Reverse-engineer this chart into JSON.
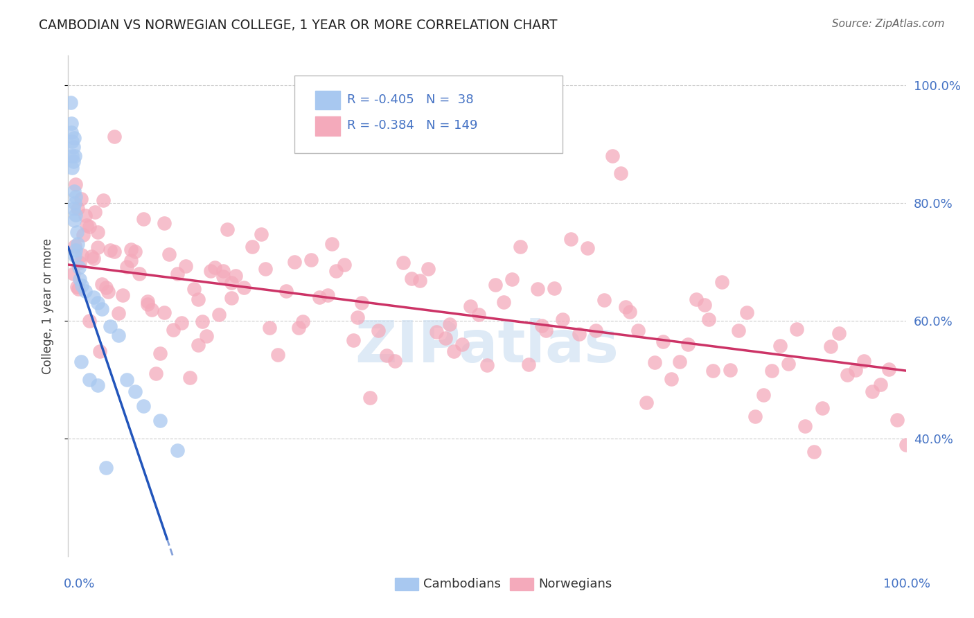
{
  "title": "CAMBODIAN VS NORWEGIAN COLLEGE, 1 YEAR OR MORE CORRELATION CHART",
  "source_text": "Source: ZipAtlas.com",
  "ylabel": "College, 1 year or more",
  "legend_blue_r": "-0.405",
  "legend_blue_n": "38",
  "legend_pink_r": "-0.384",
  "legend_pink_n": "149",
  "legend_label_cambodians": "Cambodians",
  "legend_label_norwegians": "Norwegians",
  "blue_scatter_color": "#A8C8F0",
  "pink_scatter_color": "#F4AABB",
  "blue_line_color": "#2255BB",
  "pink_line_color": "#CC3366",
  "r_n_text_color": "#4472C4",
  "axis_label_color": "#4472C4",
  "title_color": "#222222",
  "source_color": "#666666",
  "watermark_color": "#C8DCF0",
  "ylabel_color": "#444444",
  "background_color": "#FFFFFF",
  "grid_color": "#CCCCCC",
  "yticks": [
    0.4,
    0.6,
    0.8,
    1.0
  ],
  "ytick_labels": [
    "40.0%",
    "60.0%",
    "80.0%",
    "100.0%"
  ],
  "xlim": [
    0.0,
    1.0
  ],
  "ylim": [
    0.2,
    1.05
  ]
}
